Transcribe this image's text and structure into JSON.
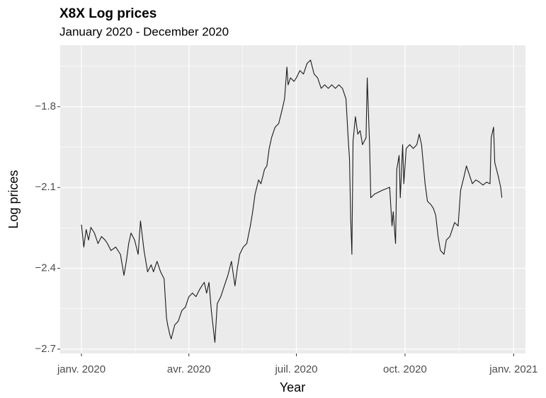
{
  "chart_data": {
    "type": "line",
    "title": "X8X Log prices",
    "subtitle": "January 2020 - December 2020",
    "xlabel": "Year",
    "ylabel": "Log prices",
    "color": "#1a1a1a",
    "grid": true,
    "xlim": [
      "2019-12-14",
      "2021-01-11"
    ],
    "xticks": [
      {
        "value": "2020-01-01",
        "label": "janv. 2020"
      },
      {
        "value": "2020-04-01",
        "label": "avr. 2020"
      },
      {
        "value": "2020-07-01",
        "label": "juil. 2020"
      },
      {
        "value": "2020-10-01",
        "label": "oct. 2020"
      },
      {
        "value": "2021-01-01",
        "label": "janv. 2021"
      }
    ],
    "ylim": [
      -2.716,
      -1.572
    ],
    "yticks": [
      {
        "value": -2.7,
        "label": "−2.7"
      },
      {
        "value": -2.4,
        "label": "−2.4"
      },
      {
        "value": -2.1,
        "label": "−2.1"
      },
      {
        "value": -1.8,
        "label": "−1.8"
      }
    ],
    "x": [
      "2020-01-01",
      "2020-01-03",
      "2020-01-05",
      "2020-01-07",
      "2020-01-09",
      "2020-01-12",
      "2020-01-15",
      "2020-01-18",
      "2020-01-21",
      "2020-01-23",
      "2020-01-26",
      "2020-01-30",
      "2020-02-03",
      "2020-02-06",
      "2020-02-08",
      "2020-02-10",
      "2020-02-12",
      "2020-02-15",
      "2020-02-18",
      "2020-02-20",
      "2020-02-23",
      "2020-02-26",
      "2020-02-29",
      "2020-03-02",
      "2020-03-05",
      "2020-03-08",
      "2020-03-11",
      "2020-03-13",
      "2020-03-14",
      "2020-03-16",
      "2020-03-17",
      "2020-03-20",
      "2020-03-23",
      "2020-03-26",
      "2020-03-29",
      "2020-04-01",
      "2020-04-04",
      "2020-04-07",
      "2020-04-10",
      "2020-04-12",
      "2020-04-14",
      "2020-04-16",
      "2020-04-18",
      "2020-04-20",
      "2020-04-22",
      "2020-04-23",
      "2020-04-25",
      "2020-04-28",
      "2020-05-01",
      "2020-05-04",
      "2020-05-07",
      "2020-05-10",
      "2020-05-12",
      "2020-05-14",
      "2020-05-17",
      "2020-05-20",
      "2020-05-23",
      "2020-05-25",
      "2020-05-27",
      "2020-05-30",
      "2020-06-01",
      "2020-06-04",
      "2020-06-06",
      "2020-06-08",
      "2020-06-10",
      "2020-06-13",
      "2020-06-16",
      "2020-06-19",
      "2020-06-21",
      "2020-06-23",
      "2020-06-24",
      "2020-06-26",
      "2020-06-29",
      "2020-07-01",
      "2020-07-04",
      "2020-07-07",
      "2020-07-10",
      "2020-07-13",
      "2020-07-16",
      "2020-07-19",
      "2020-07-22",
      "2020-07-25",
      "2020-07-28",
      "2020-07-31",
      "2020-08-03",
      "2020-08-06",
      "2020-08-09",
      "2020-08-12",
      "2020-08-14",
      "2020-08-15",
      "2020-08-16",
      "2020-08-17",
      "2020-08-18",
      "2020-08-20",
      "2020-08-22",
      "2020-08-24",
      "2020-08-26",
      "2020-08-29",
      "2020-08-30",
      "2020-09-01",
      "2020-09-02",
      "2020-09-05",
      "2020-09-11",
      "2020-09-18",
      "2020-09-20",
      "2020-09-21",
      "2020-09-23",
      "2020-09-24",
      "2020-09-26",
      "2020-09-27",
      "2020-09-29",
      "2020-09-30",
      "2020-10-02",
      "2020-10-05",
      "2020-10-08",
      "2020-10-11",
      "2020-10-13",
      "2020-10-15",
      "2020-10-18",
      "2020-10-20",
      "2020-10-23",
      "2020-10-25",
      "2020-10-27",
      "2020-10-29",
      "2020-10-31",
      "2020-11-03",
      "2020-11-05",
      "2020-11-08",
      "2020-11-10",
      "2020-11-12",
      "2020-11-15",
      "2020-11-17",
      "2020-11-20",
      "2020-11-22",
      "2020-11-24",
      "2020-11-27",
      "2020-11-30",
      "2020-12-03",
      "2020-12-06",
      "2020-12-09",
      "2020-12-12",
      "2020-12-13",
      "2020-12-15",
      "2020-12-16",
      "2020-12-19",
      "2020-12-21",
      "2020-12-22"
    ],
    "values": [
      -2.238,
      -2.321,
      -2.256,
      -2.295,
      -2.248,
      -2.269,
      -2.308,
      -2.282,
      -2.295,
      -2.308,
      -2.334,
      -2.321,
      -2.348,
      -2.426,
      -2.374,
      -2.308,
      -2.269,
      -2.295,
      -2.348,
      -2.224,
      -2.334,
      -2.413,
      -2.387,
      -2.413,
      -2.374,
      -2.413,
      -2.439,
      -2.583,
      -2.61,
      -2.649,
      -2.662,
      -2.61,
      -2.596,
      -2.557,
      -2.544,
      -2.505,
      -2.492,
      -2.505,
      -2.479,
      -2.465,
      -2.452,
      -2.492,
      -2.452,
      -2.557,
      -2.636,
      -2.675,
      -2.531,
      -2.505,
      -2.465,
      -2.426,
      -2.374,
      -2.465,
      -2.4,
      -2.348,
      -2.321,
      -2.308,
      -2.243,
      -2.19,
      -2.125,
      -2.072,
      -2.086,
      -2.033,
      -2.02,
      -1.955,
      -1.915,
      -1.876,
      -1.863,
      -1.81,
      -1.771,
      -1.653,
      -1.719,
      -1.693,
      -1.706,
      -1.693,
      -1.666,
      -1.679,
      -1.64,
      -1.627,
      -1.679,
      -1.693,
      -1.732,
      -1.719,
      -1.732,
      -1.719,
      -1.732,
      -1.719,
      -1.732,
      -1.771,
      -1.928,
      -1.994,
      -2.217,
      -2.348,
      -1.928,
      -1.837,
      -1.902,
      -1.889,
      -1.941,
      -1.915,
      -1.693,
      -1.941,
      -2.138,
      -2.125,
      -2.112,
      -2.099,
      -2.243,
      -2.19,
      -2.308,
      -2.033,
      -1.981,
      -2.138,
      -1.941,
      -2.086,
      -1.955,
      -1.941,
      -1.955,
      -1.941,
      -1.902,
      -1.941,
      -2.086,
      -2.151,
      -2.164,
      -2.177,
      -2.203,
      -2.282,
      -2.334,
      -2.348,
      -2.295,
      -2.282,
      -2.256,
      -2.23,
      -2.243,
      -2.112,
      -2.059,
      -2.02,
      -2.046,
      -2.086,
      -2.072,
      -2.08,
      -2.091,
      -2.08,
      -2.086,
      -1.915,
      -1.876,
      -2.007,
      -2.059,
      -2.099,
      -2.138
    ]
  }
}
